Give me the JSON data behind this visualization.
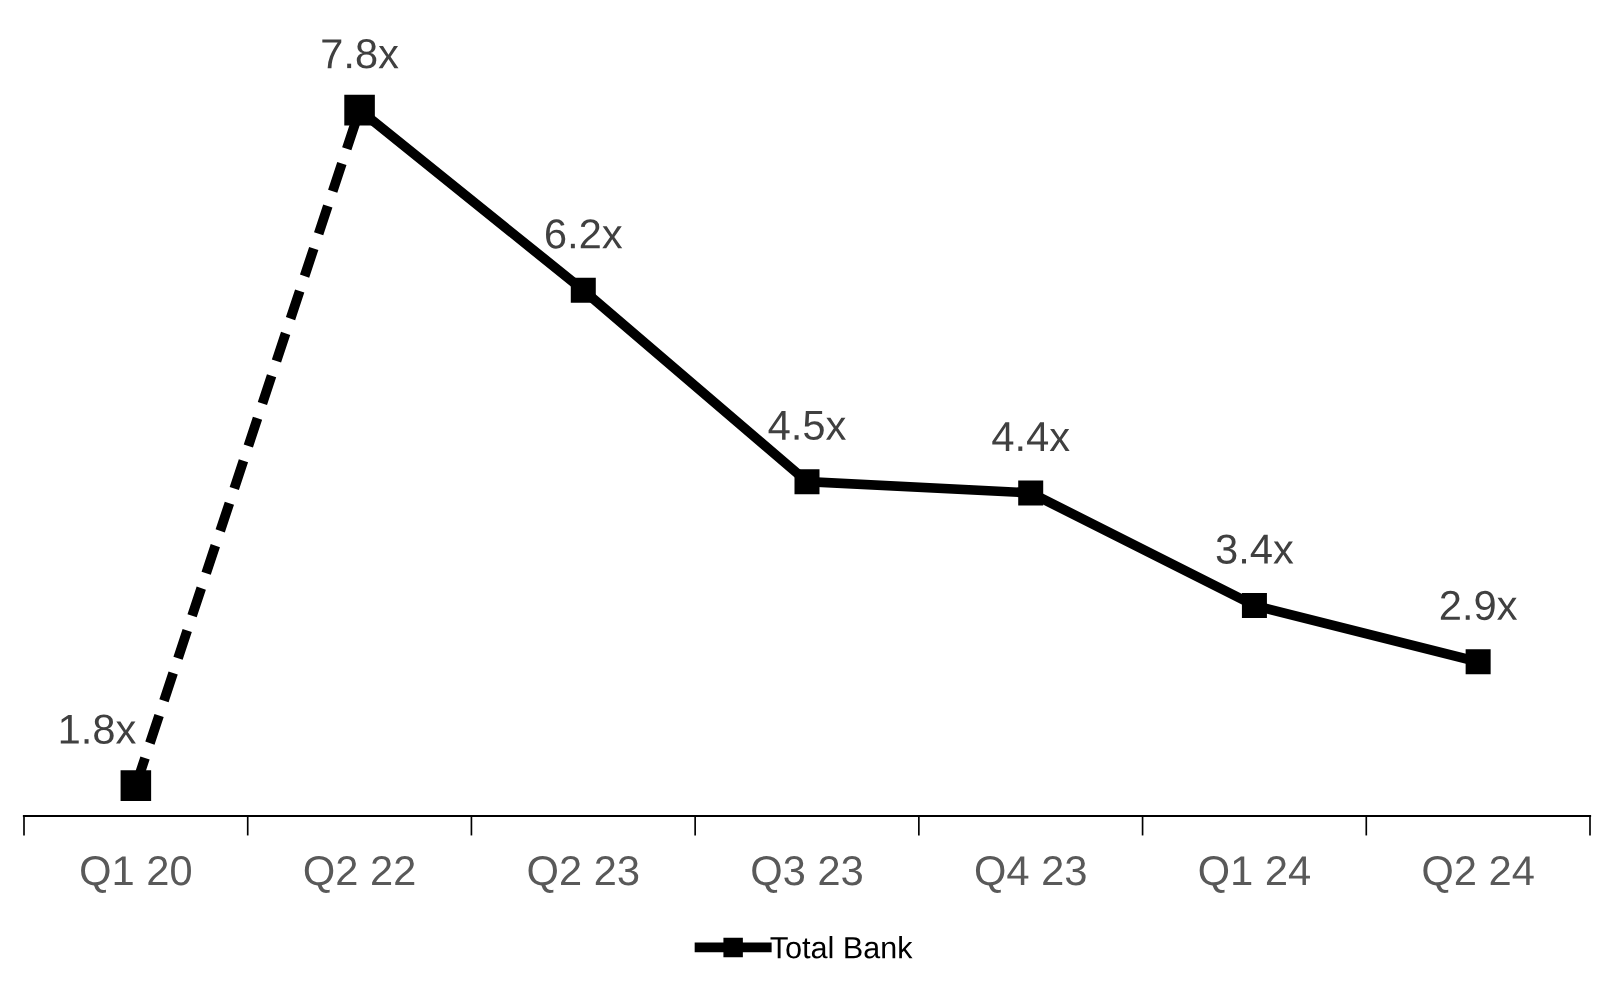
{
  "chart_data": {
    "type": "line",
    "categories": [
      "Q1 20",
      "Q2 22",
      "Q2 23",
      "Q3 23",
      "Q4 23",
      "Q1 24",
      "Q2 24"
    ],
    "series": [
      {
        "name": "Total Bank",
        "color": "#000000",
        "line_style": "solid",
        "values": [
          null,
          7.8,
          6.2,
          4.5,
          4.4,
          3.4,
          2.9
        ],
        "value_labels": [
          null,
          "7.8x",
          "6.2x",
          "4.5x",
          "4.4x",
          "3.4x",
          "2.9x"
        ]
      },
      {
        "color": "#000000",
        "line_style": "dashed",
        "values": [
          1.8,
          7.8,
          null,
          null,
          null,
          null,
          null
        ],
        "value_labels": [
          "1.8x",
          null,
          null,
          null,
          null,
          null,
          null
        ]
      }
    ],
    "marker": "square",
    "legend": "bottom",
    "grid": false
  }
}
